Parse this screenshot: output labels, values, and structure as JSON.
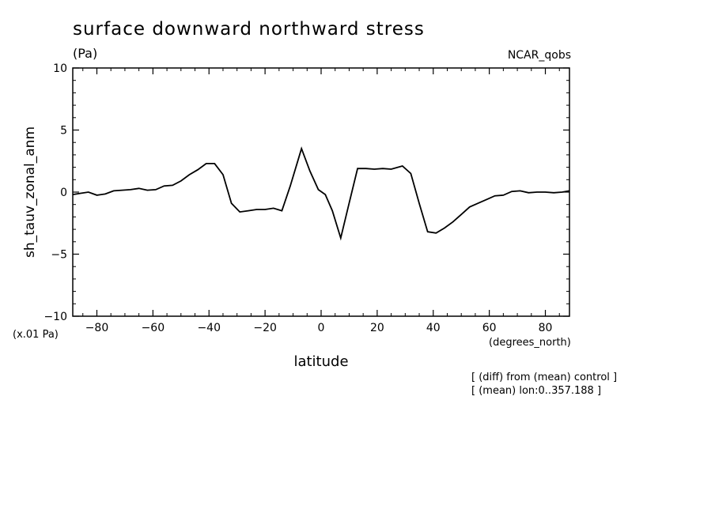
{
  "chart_data": {
    "type": "line",
    "title": "surface downward northward stress",
    "units": "(Pa)",
    "dataset": "NCAR_qobs",
    "ylabel": "sh_tauv_zonal_anm",
    "y_scale_note": "(x.01 Pa)",
    "xlabel": "latitude",
    "x_units": "(degrees_north)",
    "notes": [
      "[ (diff) from (mean) control ]",
      "[ (mean) lon:0..357.188 ]"
    ],
    "xlim": [
      -88.6,
      88.6
    ],
    "ylim": [
      -10,
      10
    ],
    "x_ticks": [
      -80,
      -60,
      -40,
      -20,
      0,
      20,
      40,
      60,
      80
    ],
    "x_tick_labels": [
      "−80",
      "−60",
      "−40",
      "−20",
      "0",
      "20",
      "40",
      "60",
      "80"
    ],
    "y_ticks": [
      -10,
      -5,
      0,
      5,
      10
    ],
    "y_tick_labels": [
      "−10",
      "−5",
      "0",
      "5",
      "10"
    ],
    "grid": false,
    "color": "#000000",
    "series": [
      {
        "x": [
          -88.6,
          -86,
          -83,
          -80,
          -77,
          -74,
          -71,
          -68,
          -65,
          -62,
          -59,
          -56,
          -53,
          -50,
          -47,
          -44,
          -41,
          -38,
          -35,
          -32,
          -29,
          -26,
          -23,
          -20,
          -17,
          -14,
          -11,
          -7,
          -4,
          -1,
          1.5,
          4,
          7,
          10,
          13,
          16,
          19,
          22,
          25,
          29,
          32,
          35,
          38,
          41,
          44,
          47,
          50,
          53,
          56,
          59,
          62,
          65,
          68,
          71,
          74,
          77,
          80,
          83,
          86,
          88.6
        ],
        "y": [
          -0.2,
          -0.1,
          0.0,
          -0.25,
          -0.15,
          0.1,
          0.15,
          0.2,
          0.3,
          0.15,
          0.2,
          0.5,
          0.55,
          0.9,
          1.4,
          1.8,
          2.3,
          2.3,
          1.4,
          -0.9,
          -1.6,
          -1.5,
          -1.4,
          -1.4,
          -1.3,
          -1.5,
          0.5,
          3.5,
          1.7,
          0.2,
          -0.2,
          -1.5,
          -3.7,
          -0.9,
          1.9,
          1.9,
          1.85,
          1.9,
          1.85,
          2.1,
          1.5,
          -0.9,
          -3.2,
          -3.3,
          -2.9,
          -2.4,
          -1.8,
          -1.2,
          -0.9,
          -0.6,
          -0.3,
          -0.25,
          0.05,
          0.1,
          -0.05,
          0.0,
          0.0,
          -0.05,
          0.0,
          0.1
        ]
      }
    ]
  }
}
